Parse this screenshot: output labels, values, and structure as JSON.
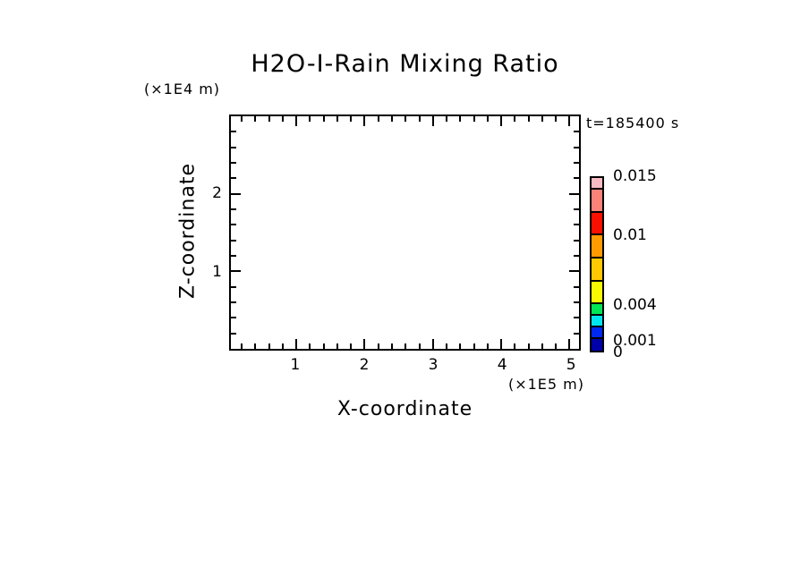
{
  "title": "H2O-I-Rain Mixing Ratio",
  "timestamp": "t=185400 s",
  "axes": {
    "x": {
      "label": "X-coordinate",
      "units": "(×1E5 m)",
      "range": [
        0.04,
        5.14
      ],
      "minor_step": 0.2,
      "major_ticks": [
        {
          "label": "1",
          "value": 1
        },
        {
          "label": "2",
          "value": 2
        },
        {
          "label": "3",
          "value": 3
        },
        {
          "label": "4",
          "value": 4
        },
        {
          "label": "5",
          "value": 5
        }
      ]
    },
    "y": {
      "label": "Z-coordinate",
      "units": "(×1E4 m)",
      "range": [
        0,
        3
      ],
      "minor_step": 0.2,
      "major_ticks": [
        {
          "label": "1",
          "value": 1
        },
        {
          "label": "2",
          "value": 2
        }
      ]
    }
  },
  "colorbar": {
    "max": 0.015,
    "levels": [
      0,
      0.001,
      0.002,
      0.003,
      0.004,
      0.006,
      0.008,
      0.01,
      0.012,
      0.014,
      0.015
    ],
    "colors_bottom_to_top": [
      "#0000A8",
      "#0028F0",
      "#00E4F0",
      "#00E455",
      "#F8F800",
      "#FFC800",
      "#FF9A00",
      "#FA1000",
      "#FA8278",
      "#FABCC2"
    ],
    "tick_labels": [
      {
        "label": "0.015",
        "value": 0.015
      },
      {
        "label": "0.01",
        "value": 0.01
      },
      {
        "label": "0.004",
        "value": 0.004
      },
      {
        "label": "0.001",
        "value": 0.001
      },
      {
        "label": "0",
        "value": 0
      }
    ]
  },
  "chart_data": {
    "type": "heatmap",
    "title": "H2O-I-Rain Mixing Ratio",
    "xlabel": "X-coordinate",
    "x_units": "(×1E5 m)",
    "ylabel": "Z-coordinate",
    "y_units": "(×1E4 m)",
    "xlim": [
      0.04,
      5.14
    ],
    "ylim": [
      0,
      3
    ],
    "x_major_ticks": [
      1,
      2,
      3,
      4,
      5
    ],
    "y_major_ticks": [
      1,
      2
    ],
    "annotation": "t=185400 s",
    "grid": false,
    "legend_position": "right colorbar",
    "colorbar_levels": [
      0,
      0.001,
      0.002,
      0.003,
      0.004,
      0.006,
      0.008,
      0.01,
      0.012,
      0.014,
      0.015
    ],
    "colorbar_labeled_levels": [
      0,
      0.001,
      0.004,
      0.01,
      0.015
    ],
    "colorbar_colors_bottom_to_top": [
      "#0000A8",
      "#0028F0",
      "#00E4F0",
      "#00E455",
      "#F8F800",
      "#FFC800",
      "#FF9A00",
      "#FA1000",
      "#FA8278",
      "#FABCC2"
    ],
    "field_values": [],
    "note": "Plot interior is blank: no rain mixing-ratio values at or above the lowest contour level are shown at this time step."
  }
}
